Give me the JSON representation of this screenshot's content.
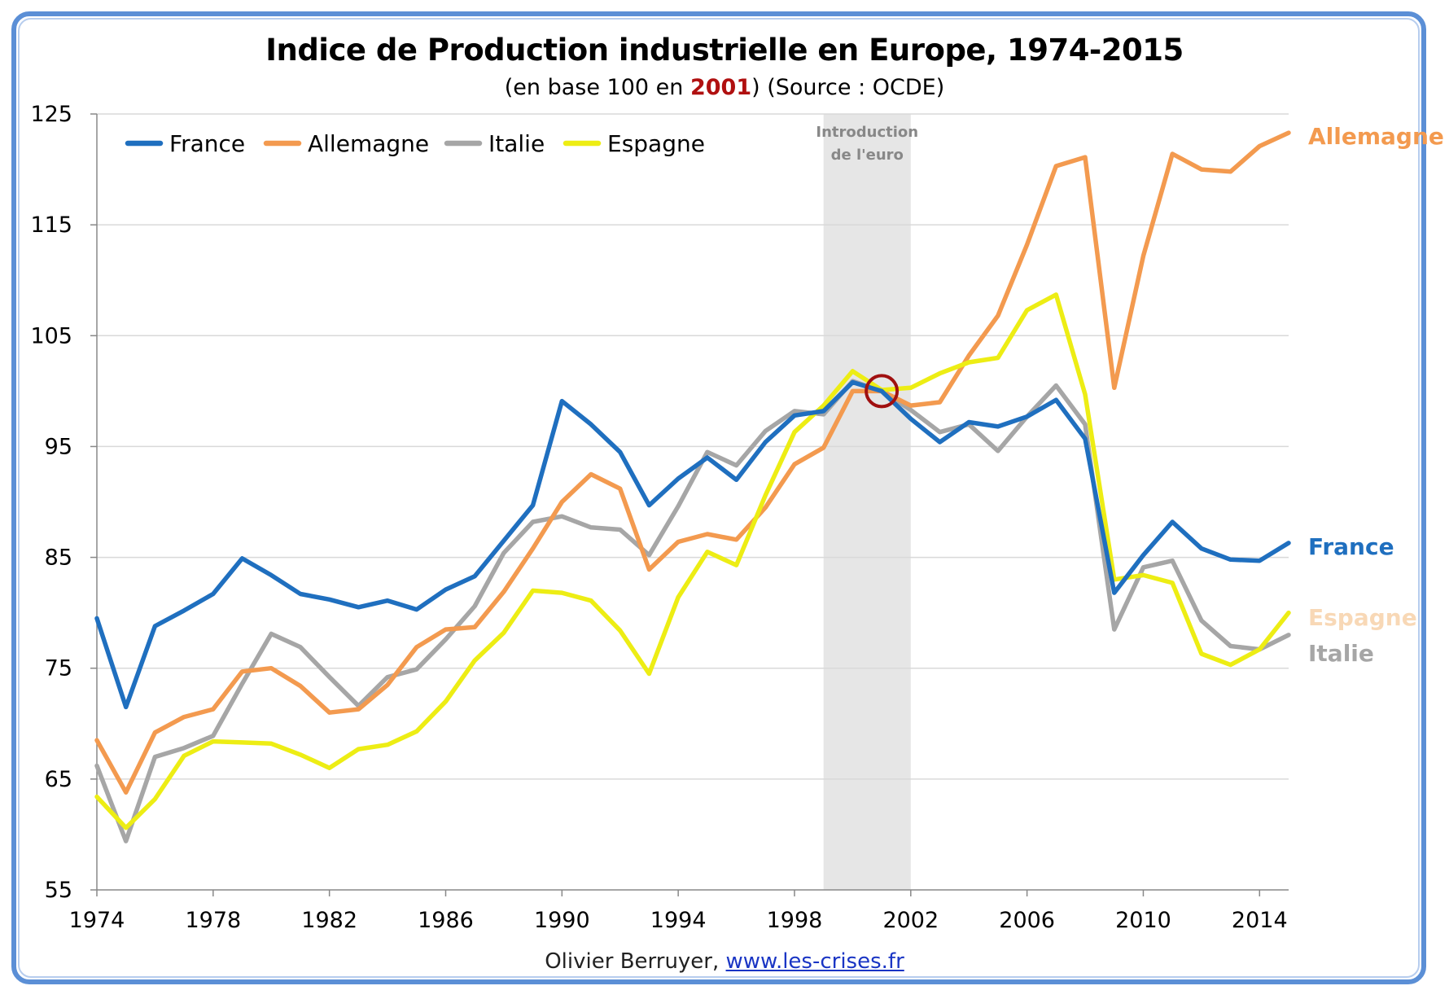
{
  "header": {
    "title": "Indice de Production industrielle  en Europe, 1974-2015",
    "subtitle_pre": "(en base 100 en ",
    "subtitle_highlight": "2001",
    "subtitle_post": ") (Source : OCDE)"
  },
  "footer": {
    "author": "Olivier Berruyer, ",
    "link": "www.les-crises.fr"
  },
  "chart_data": {
    "type": "line",
    "title": "Indice de Production industrielle  en Europe, 1974-2015",
    "x": [
      1974,
      1975,
      1976,
      1977,
      1978,
      1979,
      1980,
      1981,
      1982,
      1983,
      1984,
      1985,
      1986,
      1987,
      1988,
      1989,
      1990,
      1991,
      1992,
      1993,
      1994,
      1995,
      1996,
      1997,
      1998,
      1999,
      2000,
      2001,
      2002,
      2003,
      2004,
      2005,
      2006,
      2007,
      2008,
      2009,
      2010,
      2011,
      2012,
      2013,
      2014,
      2015
    ],
    "xlim": [
      1974,
      2015
    ],
    "ylim": [
      55,
      125
    ],
    "x_ticks": [
      "1974",
      "1978",
      "1982",
      "1986",
      "1990",
      "1994",
      "1998",
      "2002",
      "2006",
      "2010",
      "2014"
    ],
    "y_ticks": [
      "55",
      "65",
      "75",
      "85",
      "95",
      "105",
      "115",
      "125"
    ],
    "grid": "horizontal",
    "legend_position": "top-left",
    "series": [
      {
        "name": "France",
        "color": "#1f6fbf",
        "end_label": "France",
        "values": [
          79.5,
          71.5,
          78.8,
          80.2,
          81.7,
          84.9,
          83.4,
          81.7,
          81.2,
          80.5,
          81.1,
          80.3,
          82.1,
          83.3,
          86.5,
          89.7,
          99.1,
          97.0,
          94.5,
          89.7,
          92.1,
          94.0,
          92.0,
          95.4,
          97.8,
          98.2,
          100.8,
          100.0,
          97.5,
          95.4,
          97.2,
          96.8,
          97.7,
          99.2,
          95.7,
          81.8,
          85.2,
          88.2,
          85.8,
          84.8,
          84.7,
          86.3
        ]
      },
      {
        "name": "Allemagne",
        "color": "#f39a4f",
        "end_label": "Allemagne",
        "values": [
          68.5,
          63.8,
          69.2,
          70.6,
          71.3,
          74.7,
          75.0,
          73.4,
          71.0,
          71.3,
          73.5,
          76.9,
          78.5,
          78.7,
          81.9,
          85.8,
          90.0,
          92.5,
          91.2,
          83.9,
          86.4,
          87.1,
          86.6,
          89.5,
          93.4,
          94.9,
          100.0,
          100.0,
          98.7,
          99.0,
          103.2,
          106.8,
          113.2,
          120.3,
          121.1,
          100.3,
          112.2,
          121.4,
          120.0,
          119.8,
          122.1,
          123.3
        ]
      },
      {
        "name": "Italie",
        "color": "#a6a6a6",
        "end_label": "Italie",
        "values": [
          66.2,
          59.4,
          67.0,
          67.8,
          68.9,
          73.6,
          78.1,
          76.9,
          74.2,
          71.6,
          74.2,
          74.9,
          77.6,
          80.6,
          85.4,
          88.2,
          88.7,
          87.7,
          87.5,
          85.2,
          89.6,
          94.5,
          93.3,
          96.4,
          98.2,
          97.9,
          100.9,
          100.0,
          98.3,
          96.3,
          97.0,
          94.6,
          97.7,
          100.5,
          97.0,
          78.5,
          84.1,
          84.7,
          79.3,
          77.0,
          76.7,
          78.0
        ]
      },
      {
        "name": "Espagne",
        "color": "#eded14",
        "end_label": "Espagne",
        "end_label_color": "#f8d8b6",
        "values": [
          63.4,
          60.6,
          63.2,
          67.1,
          68.4,
          68.3,
          68.2,
          67.2,
          66.0,
          67.7,
          68.1,
          69.3,
          72.0,
          75.7,
          78.2,
          82.0,
          81.8,
          81.1,
          78.4,
          74.5,
          81.4,
          85.5,
          84.3,
          90.6,
          96.3,
          98.7,
          101.8,
          100.1,
          100.3,
          101.6,
          102.6,
          103.0,
          107.3,
          108.7,
          99.7,
          83.0,
          83.4,
          82.7,
          76.3,
          75.3,
          76.7,
          80.0
        ]
      }
    ],
    "highlight_band": {
      "x_from": 1999,
      "x_to": 2002,
      "label_line1": "Introduction",
      "label_line2": "de l'euro",
      "color": "#e6e6e6"
    },
    "highlight_point": {
      "x": 2001,
      "y": 100,
      "color": "#a01010"
    }
  }
}
